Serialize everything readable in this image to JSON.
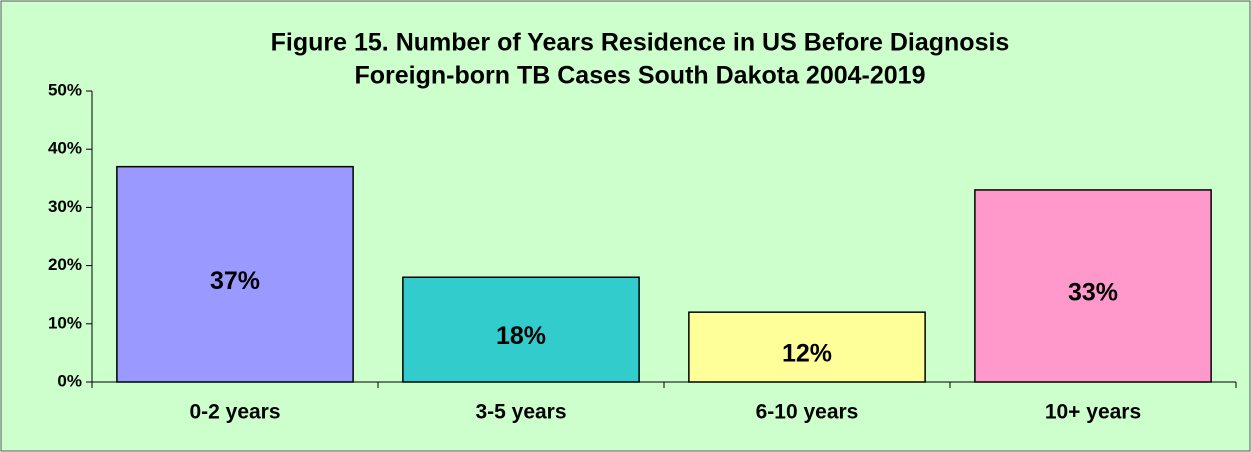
{
  "chart_data": {
    "type": "bar",
    "title": "Figure 15.  Number of Years Residence in US Before Diagnosis",
    "subtitle": "Foreign-born TB Cases    South Dakota    2004-2019",
    "categories": [
      "0-2 years",
      "3-5 years",
      "6-10 years",
      "10+ years"
    ],
    "values": [
      37,
      18,
      12,
      33
    ],
    "value_labels": [
      "37%",
      "18%",
      "12%",
      "33%"
    ],
    "colors": [
      "#9999ff",
      "#33cccc",
      "#ffff99",
      "#ff99cc"
    ],
    "ylim": [
      0,
      50
    ],
    "yticks": [
      {
        "value": 0,
        "label": "0%"
      },
      {
        "value": 10,
        "label": "10%"
      },
      {
        "value": 20,
        "label": "20%"
      },
      {
        "value": 30,
        "label": "30%"
      },
      {
        "value": 40,
        "label": "40%"
      },
      {
        "value": 50,
        "label": "50%"
      }
    ],
    "grid": false
  }
}
